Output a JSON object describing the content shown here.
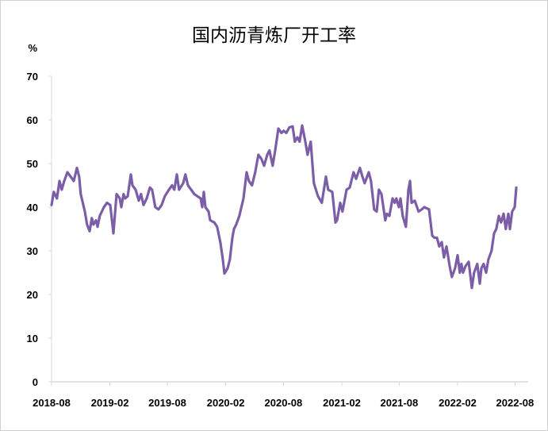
{
  "chart_data": {
    "type": "line",
    "title": "国内沥青炼厂开工率",
    "ylabel": "%",
    "xlabel": "",
    "ylim": [
      0,
      70
    ],
    "yticks": [
      0,
      10,
      20,
      30,
      40,
      50,
      60,
      70
    ],
    "xticks": [
      "2018-08",
      "2019-02",
      "2019-08",
      "2020-02",
      "2020-08",
      "2021-02",
      "2021-08",
      "2022-02",
      "2022-08"
    ],
    "grid": false,
    "legend": "none",
    "color": "#7b5ea7",
    "series": [
      {
        "points": [
          [
            "2018-08-01",
            40.5
          ],
          [
            "2018-08-08",
            43.5
          ],
          [
            "2018-08-18",
            42
          ],
          [
            "2018-08-26",
            46
          ],
          [
            "2018-09-02",
            44
          ],
          [
            "2018-09-10",
            46
          ],
          [
            "2018-09-20",
            48
          ],
          [
            "2018-09-30",
            47
          ],
          [
            "2018-10-10",
            46
          ],
          [
            "2018-10-20",
            49
          ],
          [
            "2018-10-27",
            47
          ],
          [
            "2018-11-01",
            43
          ],
          [
            "2018-11-14",
            39
          ],
          [
            "2018-11-21",
            36
          ],
          [
            "2018-11-29",
            34.5
          ],
          [
            "2018-12-06",
            37.5
          ],
          [
            "2018-12-11",
            36
          ],
          [
            "2018-12-19",
            37
          ],
          [
            "2018-12-24",
            35.5
          ],
          [
            "2018-12-31",
            38
          ],
          [
            "2019-01-13",
            40
          ],
          [
            "2019-01-23",
            41
          ],
          [
            "2019-02-02",
            40.5
          ],
          [
            "2019-02-12",
            34
          ],
          [
            "2019-02-22",
            43
          ],
          [
            "2019-03-04",
            42
          ],
          [
            "2019-03-09",
            40
          ],
          [
            "2019-03-16",
            43
          ],
          [
            "2019-03-21",
            42
          ],
          [
            "2019-03-29",
            42.5
          ],
          [
            "2019-04-08",
            47.5
          ],
          [
            "2019-04-13",
            45
          ],
          [
            "2019-04-23",
            44
          ],
          [
            "2019-05-03",
            41.5
          ],
          [
            "2019-05-10",
            43
          ],
          [
            "2019-05-18",
            40.5
          ],
          [
            "2019-05-28",
            42
          ],
          [
            "2019-06-07",
            44.5
          ],
          [
            "2019-06-14",
            44
          ],
          [
            "2019-06-24",
            40
          ],
          [
            "2019-07-04",
            39.5
          ],
          [
            "2019-07-14",
            40.5
          ],
          [
            "2019-07-24",
            42.5
          ],
          [
            "2019-08-06",
            44
          ],
          [
            "2019-08-16",
            45
          ],
          [
            "2019-08-23",
            44
          ],
          [
            "2019-08-31",
            47.5
          ],
          [
            "2019-09-07",
            44
          ],
          [
            "2019-09-20",
            45.5
          ],
          [
            "2019-09-27",
            47.5
          ],
          [
            "2019-10-05",
            45
          ],
          [
            "2019-10-15",
            44
          ],
          [
            "2019-10-25",
            43
          ],
          [
            "2019-11-04",
            42.5
          ],
          [
            "2019-11-14",
            42
          ],
          [
            "2019-11-19",
            40
          ],
          [
            "2019-11-24",
            43.5
          ],
          [
            "2019-11-29",
            40
          ],
          [
            "2019-12-09",
            39
          ],
          [
            "2019-12-14",
            37
          ],
          [
            "2019-12-27",
            36.5
          ],
          [
            "2020-01-05",
            35.5
          ],
          [
            "2020-01-15",
            32
          ],
          [
            "2020-01-23",
            28
          ],
          [
            "2020-01-28",
            24.8
          ],
          [
            "2020-02-07",
            26
          ],
          [
            "2020-02-14",
            28
          ],
          [
            "2020-02-22",
            33
          ],
          [
            "2020-02-27",
            35
          ],
          [
            "2020-03-05",
            36
          ],
          [
            "2020-03-15",
            38
          ],
          [
            "2020-03-28",
            42
          ],
          [
            "2020-04-07",
            48
          ],
          [
            "2020-04-14",
            46
          ],
          [
            "2020-04-24",
            45
          ],
          [
            "2020-05-04",
            48
          ],
          [
            "2020-05-14",
            52
          ],
          [
            "2020-05-24",
            51
          ],
          [
            "2020-06-01",
            49.5
          ],
          [
            "2020-06-11",
            52
          ],
          [
            "2020-06-18",
            53
          ],
          [
            "2020-06-28",
            49.5
          ],
          [
            "2020-07-06",
            53
          ],
          [
            "2020-07-16",
            58
          ],
          [
            "2020-07-26",
            57
          ],
          [
            "2020-08-02",
            57.5
          ],
          [
            "2020-08-10",
            57
          ],
          [
            "2020-08-20",
            58.3
          ],
          [
            "2020-08-30",
            58.5
          ],
          [
            "2020-09-06",
            55
          ],
          [
            "2020-09-14",
            56
          ],
          [
            "2020-09-21",
            55
          ],
          [
            "2020-09-29",
            58.7
          ],
          [
            "2020-10-09",
            55
          ],
          [
            "2020-10-16",
            52
          ],
          [
            "2020-10-26",
            55
          ],
          [
            "2020-11-05",
            45.5
          ],
          [
            "2020-11-18",
            42.5
          ],
          [
            "2020-11-30",
            41
          ],
          [
            "2020-12-13",
            47
          ],
          [
            "2020-12-20",
            44
          ],
          [
            "2021-01-02",
            43.5
          ],
          [
            "2021-01-12",
            36.5
          ],
          [
            "2021-01-17",
            37
          ],
          [
            "2021-01-27",
            41
          ],
          [
            "2021-02-03",
            39
          ],
          [
            "2021-02-16",
            44
          ],
          [
            "2021-02-26",
            44.5
          ],
          [
            "2021-03-10",
            48
          ],
          [
            "2021-03-18",
            46.5
          ],
          [
            "2021-03-30",
            49
          ],
          [
            "2021-04-07",
            47
          ],
          [
            "2021-04-14",
            45.5
          ],
          [
            "2021-04-27",
            48
          ],
          [
            "2021-05-04",
            46
          ],
          [
            "2021-05-14",
            39.5
          ],
          [
            "2021-05-22",
            39
          ],
          [
            "2021-05-29",
            44
          ],
          [
            "2021-06-06",
            43
          ],
          [
            "2021-06-18",
            37
          ],
          [
            "2021-06-23",
            38.5
          ],
          [
            "2021-07-01",
            38
          ],
          [
            "2021-07-11",
            42
          ],
          [
            "2021-07-18",
            41
          ],
          [
            "2021-07-23",
            42
          ],
          [
            "2021-07-31",
            40
          ],
          [
            "2021-08-05",
            42
          ],
          [
            "2021-08-12",
            38
          ],
          [
            "2021-08-22",
            35.5
          ],
          [
            "2021-08-30",
            44
          ],
          [
            "2021-09-04",
            46
          ],
          [
            "2021-09-09",
            41
          ],
          [
            "2021-09-19",
            41.5
          ],
          [
            "2021-10-01",
            39
          ],
          [
            "2021-10-11",
            39.5
          ],
          [
            "2021-10-19",
            40
          ],
          [
            "2021-11-03",
            39.5
          ],
          [
            "2021-11-13",
            33.5
          ],
          [
            "2021-11-20",
            33
          ],
          [
            "2021-11-28",
            33
          ],
          [
            "2021-12-05",
            31
          ],
          [
            "2021-12-13",
            32
          ],
          [
            "2021-12-20",
            28.5
          ],
          [
            "2021-12-28",
            31
          ],
          [
            "2022-01-07",
            26.5
          ],
          [
            "2022-01-14",
            24
          ],
          [
            "2022-01-24",
            26
          ],
          [
            "2022-02-01",
            29
          ],
          [
            "2022-02-08",
            25
          ],
          [
            "2022-02-13",
            27
          ],
          [
            "2022-02-18",
            25
          ],
          [
            "2022-02-26",
            26.5
          ],
          [
            "2022-03-08",
            27.5
          ],
          [
            "2022-03-18",
            21.5
          ],
          [
            "2022-03-25",
            25
          ],
          [
            "2022-04-04",
            27
          ],
          [
            "2022-04-12",
            22.5
          ],
          [
            "2022-04-17",
            26
          ],
          [
            "2022-04-24",
            27
          ],
          [
            "2022-05-02",
            25
          ],
          [
            "2022-05-09",
            28
          ],
          [
            "2022-05-19",
            30
          ],
          [
            "2022-05-27",
            34
          ],
          [
            "2022-06-03",
            35
          ],
          [
            "2022-06-11",
            38
          ],
          [
            "2022-06-18",
            36.5
          ],
          [
            "2022-06-26",
            38.5
          ],
          [
            "2022-07-03",
            35
          ],
          [
            "2022-07-11",
            38.5
          ],
          [
            "2022-07-16",
            35
          ],
          [
            "2022-07-23",
            39
          ],
          [
            "2022-07-31",
            40
          ],
          [
            "2022-08-05",
            44.5
          ]
        ]
      }
    ]
  }
}
